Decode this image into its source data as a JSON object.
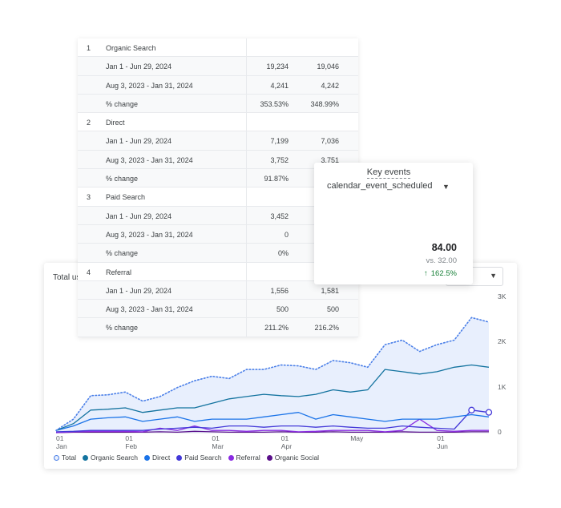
{
  "chart_data": {
    "type": "line",
    "title": "Total users",
    "categories": [
      "01\nJan",
      null,
      null,
      null,
      "01\nFeb",
      null,
      null,
      null,
      null,
      "01\nMar",
      null,
      null,
      null,
      "01\nApr",
      null,
      null,
      null,
      "May",
      null,
      null,
      null,
      null,
      "01\nJun",
      null,
      null,
      null
    ],
    "ylim": [
      0,
      3000
    ],
    "yticks": [
      0,
      {
        "value": 1000,
        "label": "1K"
      },
      {
        "value": 2000,
        "label": "2K"
      },
      {
        "value": 3000,
        "label": "3K"
      }
    ],
    "grid": false,
    "series": [
      {
        "name": "Total",
        "color": "#4a7fe8",
        "line_style": "dotted",
        "fill": "#e8effd",
        "values": [
          50,
          300,
          820,
          840,
          900,
          700,
          800,
          1000,
          1150,
          1250,
          1200,
          1400,
          1400,
          1500,
          1480,
          1400,
          1600,
          1550,
          1450,
          1950,
          2050,
          1800,
          1950,
          2050,
          2550,
          2450
        ]
      },
      {
        "name": "Organic Search",
        "color": "#13739f",
        "values": [
          50,
          200,
          500,
          520,
          550,
          450,
          500,
          550,
          550,
          650,
          750,
          800,
          850,
          820,
          800,
          850,
          950,
          900,
          950,
          1400,
          1350,
          1300,
          1350,
          1450,
          1500,
          1450
        ]
      },
      {
        "name": "Direct",
        "color": "#1a73e8",
        "values": [
          50,
          150,
          300,
          330,
          350,
          250,
          300,
          350,
          250,
          300,
          300,
          300,
          350,
          400,
          450,
          300,
          400,
          350,
          300,
          250,
          300,
          300,
          300,
          350,
          400,
          350
        ]
      },
      {
        "name": "Paid Search",
        "color": "#4338d8",
        "values": [
          20,
          30,
          50,
          50,
          50,
          50,
          80,
          100,
          120,
          100,
          150,
          150,
          120,
          150,
          150,
          120,
          150,
          120,
          100,
          100,
          150,
          120,
          100,
          80,
          500,
          450
        ]
      },
      {
        "name": "Referral",
        "color": "#8a2be2",
        "values": [
          0,
          20,
          30,
          30,
          30,
          20,
          100,
          50,
          150,
          50,
          50,
          30,
          50,
          50,
          20,
          30,
          50,
          50,
          50,
          20,
          50,
          300,
          50,
          30,
          50,
          50
        ]
      },
      {
        "name": "Organic Social",
        "color": "#5a0f8a",
        "values": [
          0,
          10,
          10,
          10,
          10,
          10,
          20,
          10,
          30,
          20,
          10,
          10,
          10,
          20,
          10,
          10,
          20,
          10,
          10,
          10,
          20,
          10,
          10,
          10,
          20,
          20
        ]
      }
    ]
  },
  "table": {
    "groups": [
      {
        "index": "1",
        "name": "Organic Search",
        "rows": [
          {
            "label": "Jan 1 - Jun 29, 2024",
            "values": [
              "19,234",
              "19,046"
            ]
          },
          {
            "label": "Aug 3, 2023 - Jan 31, 2024",
            "values": [
              "4,241",
              "4,242"
            ]
          },
          {
            "label": "% change",
            "values": [
              "353.53%",
              "348.99%"
            ]
          }
        ]
      },
      {
        "index": "2",
        "name": "Direct",
        "rows": [
          {
            "label": "Jan 1 - Jun 29, 2024",
            "values": [
              "7,199",
              "7,036"
            ]
          },
          {
            "label": "Aug 3, 2023 - Jan 31, 2024",
            "values": [
              "3,752",
              "3.751"
            ]
          },
          {
            "label": "% change",
            "values": [
              "91.87%"
            ]
          }
        ]
      },
      {
        "index": "3",
        "name": "Paid Search",
        "rows": [
          {
            "label": "Jan 1 - Jun 29, 2024",
            "values": [
              "3,452"
            ]
          },
          {
            "label": "Aug 3, 2023 - Jan 31, 2024",
            "values": [
              "0"
            ]
          },
          {
            "label": "% change",
            "values": [
              "0%"
            ]
          }
        ]
      },
      {
        "index": "4",
        "name": "Referral",
        "rows": [
          {
            "label": "Jan 1 - Jun 29, 2024",
            "values": [
              "1,556",
              "1,581"
            ]
          },
          {
            "label": "Aug 3, 2023 - Jan 31, 2024",
            "values": [
              "500",
              "500"
            ]
          },
          {
            "label": "% change",
            "values": [
              "211.2%",
              "216.2%"
            ]
          }
        ]
      }
    ]
  },
  "key_events": {
    "title": "Key events",
    "metric": "calendar_event_scheduled",
    "value": "84.00",
    "comparison": "vs. 32.00",
    "change": "162.5%"
  }
}
